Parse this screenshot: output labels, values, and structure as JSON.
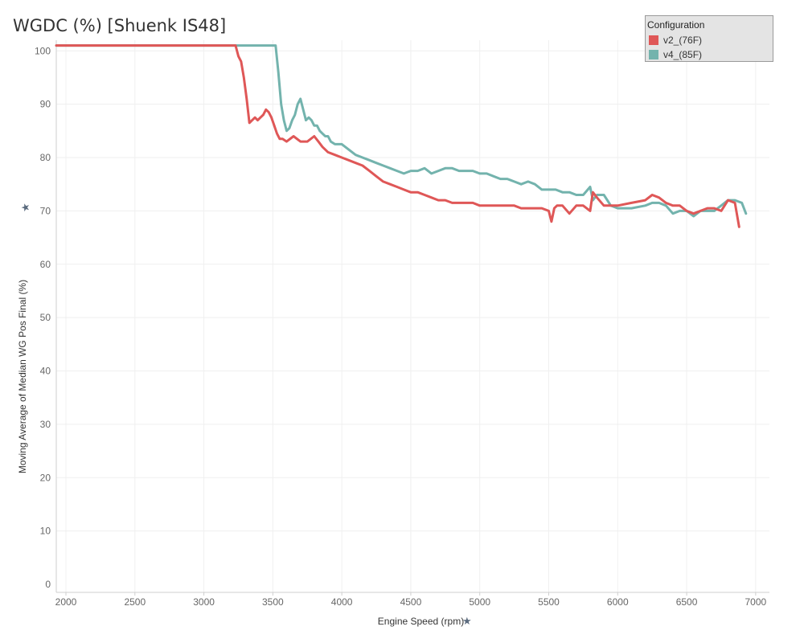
{
  "title": "WGDC (%) [Shuenk IS48]",
  "chart_data": {
    "type": "line",
    "xlabel": "Engine Speed (rpm)",
    "ylabel": "Moving Average of Median WG Pos Final (%)",
    "xlim": [
      1930,
      7100
    ],
    "ylim": [
      -1.5,
      102
    ],
    "x_ticks": [
      2000,
      2500,
      3000,
      3500,
      4000,
      4500,
      5000,
      5500,
      6000,
      6500,
      7000
    ],
    "y_ticks": [
      0,
      10,
      20,
      30,
      40,
      50,
      60,
      70,
      80,
      90,
      100
    ],
    "grid": true,
    "legend": {
      "title": "Configuration",
      "placement": "top-right",
      "entries": [
        "v2_(76F)",
        "v4_(85F)"
      ]
    },
    "series": [
      {
        "name": "v4_(85F)",
        "color": "#73b3ad",
        "x": [
          1930,
          3520,
          3540,
          3560,
          3580,
          3600,
          3620,
          3640,
          3660,
          3680,
          3700,
          3720,
          3740,
          3760,
          3780,
          3800,
          3820,
          3840,
          3860,
          3880,
          3900,
          3920,
          3950,
          4000,
          4050,
          4100,
          4150,
          4200,
          4250,
          4300,
          4350,
          4400,
          4450,
          4500,
          4550,
          4600,
          4650,
          4700,
          4750,
          4800,
          4850,
          4900,
          4950,
          5000,
          5050,
          5100,
          5150,
          5200,
          5250,
          5300,
          5350,
          5400,
          5450,
          5500,
          5550,
          5600,
          5650,
          5700,
          5750,
          5800,
          5820,
          5850,
          5900,
          5950,
          6000,
          6100,
          6200,
          6250,
          6300,
          6350,
          6400,
          6450,
          6500,
          6550,
          6600,
          6650,
          6700,
          6750,
          6800,
          6850,
          6900,
          6930
        ],
        "y": [
          101,
          101,
          96,
          90,
          87,
          85,
          85.5,
          87,
          88,
          90,
          91,
          89,
          87,
          87.5,
          87,
          86,
          86,
          85,
          84.5,
          84,
          84,
          83,
          82.5,
          82.5,
          81.5,
          80.5,
          80,
          79.5,
          79,
          78.5,
          78,
          77.5,
          77,
          77.5,
          77.5,
          78,
          77,
          77.5,
          78,
          78,
          77.5,
          77.5,
          77.5,
          77,
          77,
          76.5,
          76,
          76,
          75.5,
          75,
          75.5,
          75,
          74,
          74,
          74,
          73.5,
          73.5,
          73,
          73,
          74.5,
          72,
          73,
          73,
          71,
          70.5,
          70.5,
          71,
          71.5,
          71.5,
          71,
          69.5,
          70,
          70,
          69,
          70,
          70,
          70,
          71,
          72,
          72,
          71.5,
          69.5
        ]
      },
      {
        "name": "v2_(76F)",
        "color": "#df5757",
        "x": [
          1930,
          3230,
          3250,
          3270,
          3290,
          3310,
          3330,
          3350,
          3370,
          3390,
          3410,
          3430,
          3450,
          3470,
          3490,
          3510,
          3530,
          3550,
          3570,
          3600,
          3650,
          3700,
          3750,
          3800,
          3830,
          3860,
          3900,
          3950,
          4000,
          4050,
          4100,
          4150,
          4200,
          4250,
          4300,
          4350,
          4400,
          4450,
          4500,
          4550,
          4600,
          4650,
          4700,
          4750,
          4800,
          4850,
          4900,
          4950,
          5000,
          5050,
          5100,
          5150,
          5200,
          5250,
          5300,
          5350,
          5400,
          5450,
          5500,
          5520,
          5540,
          5560,
          5600,
          5650,
          5700,
          5750,
          5800,
          5820,
          5850,
          5900,
          5950,
          6000,
          6100,
          6200,
          6250,
          6300,
          6350,
          6400,
          6450,
          6500,
          6550,
          6600,
          6650,
          6700,
          6750,
          6800,
          6850,
          6880
        ],
        "y": [
          101,
          101,
          99,
          98,
          95,
          91,
          86.5,
          87,
          87.5,
          87,
          87.5,
          88,
          89,
          88.5,
          87.5,
          86,
          84.5,
          83.5,
          83.5,
          83,
          84,
          83,
          83,
          84,
          83,
          82,
          81,
          80.5,
          80,
          79.5,
          79,
          78.5,
          77.5,
          76.5,
          75.5,
          75,
          74.5,
          74,
          73.5,
          73.5,
          73,
          72.5,
          72,
          72,
          71.5,
          71.5,
          71.5,
          71.5,
          71,
          71,
          71,
          71,
          71,
          71,
          70.5,
          70.5,
          70.5,
          70.5,
          70,
          68,
          70.5,
          71,
          71,
          69.5,
          71,
          71,
          70,
          73.5,
          72.5,
          71,
          71,
          71,
          71.5,
          72,
          73,
          72.5,
          71.5,
          71,
          71,
          70,
          69.5,
          70,
          70.5,
          70.5,
          70,
          72,
          71.5,
          67
        ]
      }
    ]
  }
}
